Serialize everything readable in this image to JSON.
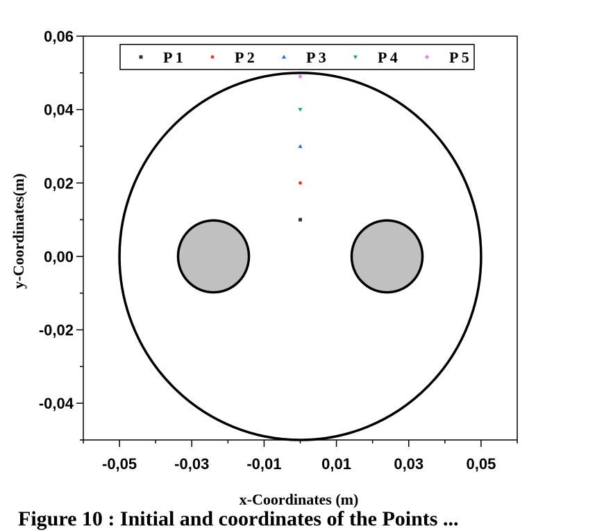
{
  "caption": "Figure 10 : Initial and coordinates of the Points ...",
  "chart_data": {
    "type": "scatter",
    "title": "",
    "xlabel": "x-Coordinates (m)",
    "ylabel": "y-Coordinates(m)",
    "xlim": [
      -0.06,
      0.06
    ],
    "ylim": [
      -0.05,
      0.06
    ],
    "xticks": [
      -0.05,
      -0.03,
      -0.01,
      0.01,
      0.03,
      0.05
    ],
    "xtick_labels": [
      "-0,05",
      "-0,03",
      "-0,01",
      "0,01",
      "0,03",
      "0,05"
    ],
    "yticks": [
      -0.04,
      -0.02,
      0.0,
      0.02,
      0.04,
      0.06
    ],
    "ytick_labels": [
      "-0,04",
      "-0,02",
      "0,00",
      "0,02",
      "0,04",
      "0,06"
    ],
    "legend_position": "top",
    "series": [
      {
        "name": "P 1",
        "x": [
          0.0
        ],
        "y": [
          0.01
        ],
        "color": "#333333",
        "marker": "square"
      },
      {
        "name": "P 2",
        "x": [
          0.0
        ],
        "y": [
          0.02
        ],
        "color": "#e8382f",
        "marker": "circle"
      },
      {
        "name": "P 3",
        "x": [
          0.0
        ],
        "y": [
          0.03
        ],
        "color": "#1f6fd1",
        "marker": "triangle-up"
      },
      {
        "name": "P 4",
        "x": [
          0.0
        ],
        "y": [
          0.04
        ],
        "color": "#2e9b7a",
        "marker": "triangle-down"
      },
      {
        "name": "P 5",
        "x": [
          0.0
        ],
        "y": [
          0.049
        ],
        "color": "#e58ae0",
        "marker": "diamond"
      }
    ],
    "shapes": [
      {
        "kind": "circle",
        "name": "outer-boundary",
        "center": [
          0.0,
          0.0
        ],
        "radius": 0.05,
        "fill": "none",
        "stroke": "#000000"
      },
      {
        "kind": "circle",
        "name": "left-cylinder",
        "center": [
          -0.024,
          0.0
        ],
        "radius": 0.0098,
        "fill": "#c0c0c0",
        "stroke": "#000000"
      },
      {
        "kind": "circle",
        "name": "right-cylinder",
        "center": [
          0.024,
          0.0
        ],
        "radius": 0.0098,
        "fill": "#c0c0c0",
        "stroke": "#000000"
      }
    ]
  }
}
